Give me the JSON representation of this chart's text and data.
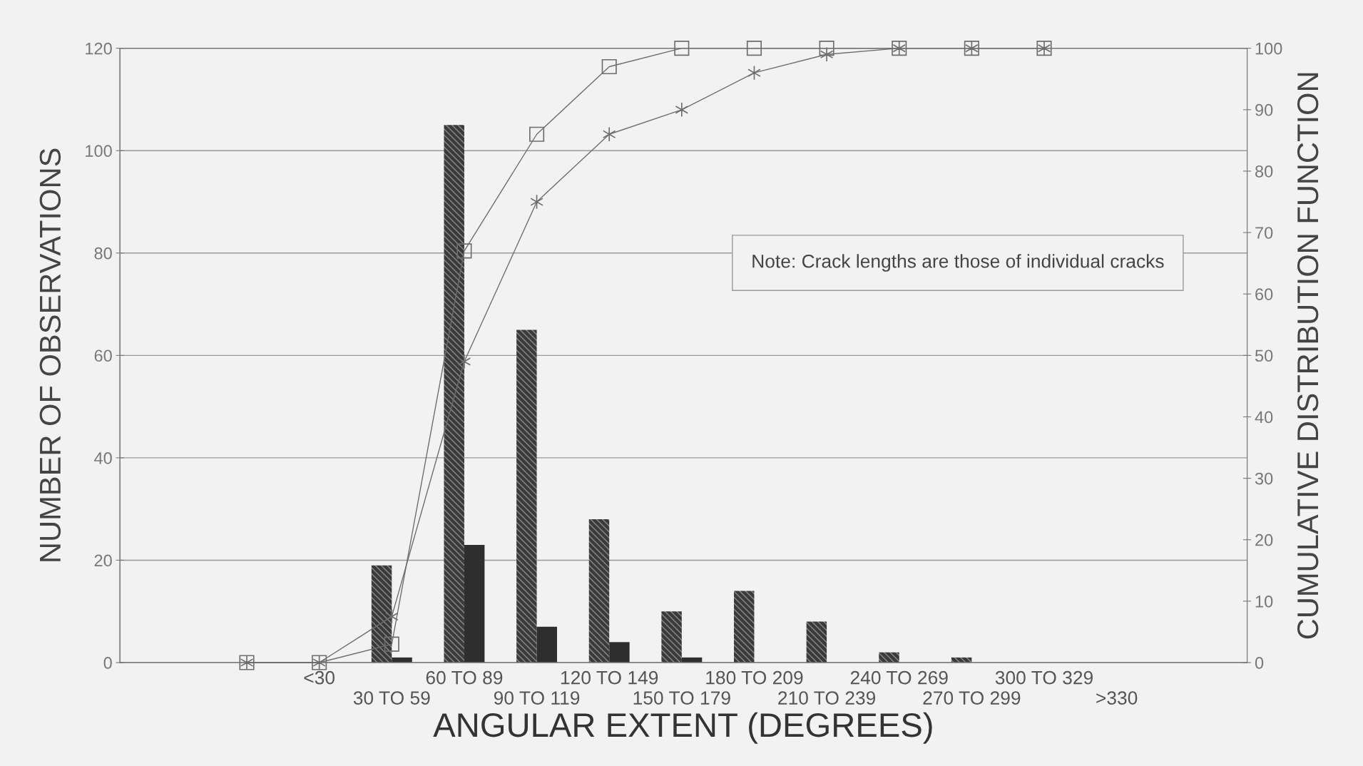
{
  "chart_data": {
    "type": "bar",
    "xlabel": "ANGULAR EXTENT (DEGREES)",
    "ylabel": "NUMBER OF OBSERVATIONS",
    "y2label": "CUMULATIVE DISTRIBUTION FUNCTION",
    "categories": [
      null,
      "<30",
      "30 TO 59",
      "60 TO 89",
      "90 TO 119",
      "120 TO 149",
      "150 TO 179",
      "180 TO 209",
      "210 TO 239",
      "240 TO 269",
      "270 TO 299",
      "300 TO 329",
      ">330"
    ],
    "series": [
      {
        "color": "#3a3a3a",
        "values": [
          null,
          null,
          19,
          105,
          65,
          28,
          10,
          14,
          8,
          2,
          1,
          null,
          null
        ]
      },
      {
        "color": "#2e2e2e",
        "values": [
          null,
          null,
          1,
          23,
          7,
          4,
          1,
          null,
          null,
          null,
          null,
          null,
          null
        ]
      },
      {
        "type": "line",
        "axis": "y2",
        "color": "#6e6e6e",
        "marker": "cross",
        "values": [
          0,
          0,
          7.5,
          49,
          75,
          86,
          90,
          96,
          99,
          100,
          100,
          100,
          null
        ]
      },
      {
        "type": "line",
        "axis": "y2",
        "color": "#6e6e6e",
        "marker": "square",
        "values": [
          0,
          0,
          3,
          67,
          86,
          97,
          100,
          100,
          100,
          100,
          100,
          100,
          null
        ]
      }
    ],
    "ylim": [
      0,
      120
    ],
    "yticks": [
      0,
      20,
      40,
      60,
      80,
      100,
      120
    ],
    "y2lim": [
      0,
      100
    ],
    "y2ticks": [
      0,
      10,
      20,
      30,
      40,
      50,
      60,
      70,
      80,
      90,
      100
    ],
    "grid": true,
    "legend": false,
    "annotations": [
      "Note: Crack lengths are those of individual cracks"
    ]
  }
}
